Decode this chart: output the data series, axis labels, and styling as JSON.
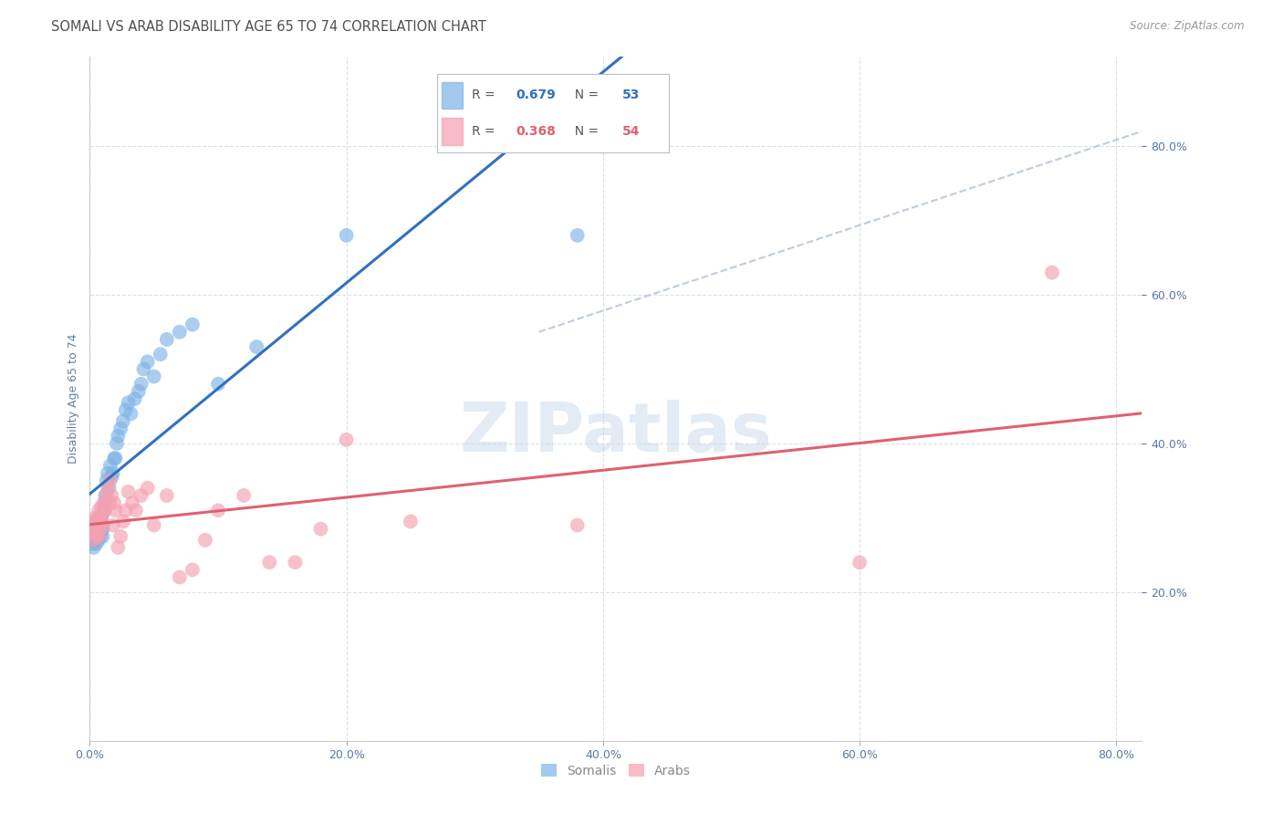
{
  "title": "SOMALI VS ARAB DISABILITY AGE 65 TO 74 CORRELATION CHART",
  "source": "Source: ZipAtlas.com",
  "ylabel": "Disability Age 65 to 74",
  "watermark": "ZIPatlas",
  "somali_R": 0.679,
  "somali_N": 53,
  "arab_R": 0.368,
  "arab_N": 54,
  "xlim": [
    0.0,
    0.82
  ],
  "ylim": [
    0.0,
    0.92
  ],
  "yticks": [
    0.2,
    0.4,
    0.6,
    0.8
  ],
  "xticks": [
    0.0,
    0.2,
    0.4,
    0.6,
    0.8
  ],
  "somali_color": "#7EB3E8",
  "arab_color": "#F4A0B0",
  "somali_line_color": "#3070C0",
  "arab_line_color": "#E06070",
  "diagonal_color": "#B0C0D0",
  "title_color": "#505050",
  "axis_label_color": "#6080A0",
  "tick_color": "#5878A8",
  "grid_color": "#D8E0EC",
  "background_color": "#FFFFFF",
  "title_fontsize": 10.5,
  "source_fontsize": 8.5,
  "ylabel_fontsize": 9,
  "legend_fontsize": 10,
  "tick_fontsize": 9,
  "somali_x": [
    0.001,
    0.002,
    0.003,
    0.003,
    0.004,
    0.004,
    0.005,
    0.005,
    0.005,
    0.006,
    0.006,
    0.007,
    0.007,
    0.008,
    0.008,
    0.008,
    0.009,
    0.009,
    0.01,
    0.01,
    0.01,
    0.011,
    0.012,
    0.012,
    0.013,
    0.014,
    0.015,
    0.016,
    0.017,
    0.018,
    0.019,
    0.02,
    0.021,
    0.022,
    0.024,
    0.026,
    0.028,
    0.03,
    0.032,
    0.035,
    0.038,
    0.04,
    0.042,
    0.045,
    0.05,
    0.055,
    0.06,
    0.07,
    0.08,
    0.1,
    0.13,
    0.2,
    0.38
  ],
  "somali_y": [
    0.27,
    0.265,
    0.28,
    0.26,
    0.275,
    0.29,
    0.265,
    0.27,
    0.285,
    0.275,
    0.28,
    0.27,
    0.29,
    0.275,
    0.28,
    0.295,
    0.285,
    0.3,
    0.275,
    0.285,
    0.29,
    0.31,
    0.32,
    0.33,
    0.35,
    0.36,
    0.34,
    0.37,
    0.355,
    0.36,
    0.38,
    0.38,
    0.4,
    0.41,
    0.42,
    0.43,
    0.445,
    0.455,
    0.44,
    0.46,
    0.47,
    0.48,
    0.5,
    0.51,
    0.49,
    0.52,
    0.54,
    0.55,
    0.56,
    0.48,
    0.53,
    0.68,
    0.68
  ],
  "arab_x": [
    0.001,
    0.002,
    0.002,
    0.003,
    0.003,
    0.004,
    0.004,
    0.005,
    0.005,
    0.006,
    0.006,
    0.006,
    0.007,
    0.007,
    0.008,
    0.008,
    0.009,
    0.009,
    0.01,
    0.01,
    0.011,
    0.012,
    0.013,
    0.014,
    0.015,
    0.016,
    0.017,
    0.018,
    0.019,
    0.02,
    0.022,
    0.024,
    0.026,
    0.028,
    0.03,
    0.033,
    0.036,
    0.04,
    0.045,
    0.05,
    0.06,
    0.07,
    0.08,
    0.09,
    0.1,
    0.12,
    0.14,
    0.16,
    0.18,
    0.2,
    0.25,
    0.38,
    0.6,
    0.75
  ],
  "arab_y": [
    0.285,
    0.29,
    0.28,
    0.27,
    0.295,
    0.28,
    0.3,
    0.275,
    0.285,
    0.29,
    0.28,
    0.3,
    0.275,
    0.31,
    0.285,
    0.295,
    0.3,
    0.315,
    0.29,
    0.305,
    0.32,
    0.31,
    0.33,
    0.34,
    0.32,
    0.35,
    0.33,
    0.29,
    0.32,
    0.31,
    0.26,
    0.275,
    0.295,
    0.31,
    0.335,
    0.32,
    0.31,
    0.33,
    0.34,
    0.29,
    0.33,
    0.22,
    0.23,
    0.27,
    0.31,
    0.33,
    0.24,
    0.24,
    0.285,
    0.405,
    0.295,
    0.29,
    0.24,
    0.63
  ]
}
